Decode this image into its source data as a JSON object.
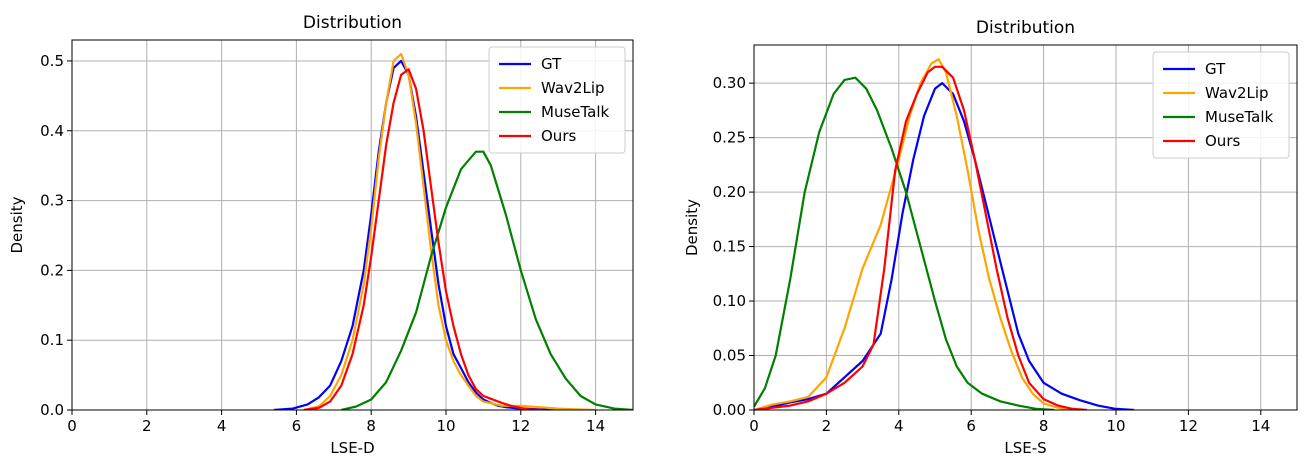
{
  "chart_data": [
    {
      "type": "line",
      "title": "Distribution",
      "xlabel": "LSE-D",
      "ylabel": "Density",
      "xlim": [
        0,
        15
      ],
      "ylim": [
        0,
        0.53
      ],
      "xticks": [
        0,
        2,
        4,
        6,
        8,
        10,
        12,
        14
      ],
      "xtick_labels": [
        "0",
        "2",
        "4",
        "6",
        "8",
        "10",
        "12",
        "14"
      ],
      "yticks": [
        0,
        0.1,
        0.2,
        0.3,
        0.4,
        0.5
      ],
      "ytick_labels": [
        "0.0",
        "0.1",
        "0.2",
        "0.3",
        "0.4",
        "0.5"
      ],
      "grid": true,
      "legend_position": "top-right",
      "series": [
        {
          "name": "GT",
          "color": "#0000ff",
          "x": [
            5.4,
            5.9,
            6.3,
            6.6,
            6.9,
            7.2,
            7.5,
            7.8,
            8.0,
            8.2,
            8.4,
            8.6,
            8.8,
            9.0,
            9.2,
            9.4,
            9.6,
            9.8,
            10.0,
            10.2,
            10.4,
            10.6,
            10.8,
            11.0,
            11.2,
            11.4,
            11.6,
            12.0,
            12.5,
            13.0
          ],
          "y": [
            0.0,
            0.002,
            0.008,
            0.018,
            0.035,
            0.07,
            0.12,
            0.2,
            0.28,
            0.37,
            0.44,
            0.49,
            0.5,
            0.48,
            0.42,
            0.34,
            0.26,
            0.18,
            0.12,
            0.08,
            0.06,
            0.04,
            0.025,
            0.015,
            0.01,
            0.006,
            0.004,
            0.002,
            0.001,
            0.0
          ]
        },
        {
          "name": "Wav2Lip",
          "color": "#ffa500",
          "x": [
            6.2,
            6.6,
            6.9,
            7.2,
            7.5,
            7.8,
            8.0,
            8.2,
            8.4,
            8.6,
            8.8,
            9.0,
            9.2,
            9.4,
            9.6,
            9.8,
            10.0,
            10.2,
            10.4,
            10.6,
            10.8,
            11.0,
            11.5,
            12.0,
            12.5,
            13.0,
            13.5,
            14.0
          ],
          "y": [
            0.0,
            0.005,
            0.02,
            0.05,
            0.1,
            0.18,
            0.26,
            0.36,
            0.44,
            0.5,
            0.51,
            0.48,
            0.41,
            0.32,
            0.23,
            0.15,
            0.1,
            0.07,
            0.05,
            0.035,
            0.02,
            0.012,
            0.006,
            0.006,
            0.004,
            0.002,
            0.001,
            0.0
          ]
        },
        {
          "name": "MuseTalk",
          "color": "#008000",
          "x": [
            7.2,
            7.6,
            8.0,
            8.4,
            8.8,
            9.2,
            9.6,
            10.0,
            10.4,
            10.8,
            11.0,
            11.2,
            11.6,
            12.0,
            12.4,
            12.8,
            13.2,
            13.6,
            14.0,
            14.5,
            15.0
          ],
          "y": [
            0.0,
            0.005,
            0.015,
            0.04,
            0.085,
            0.14,
            0.22,
            0.29,
            0.345,
            0.37,
            0.37,
            0.35,
            0.28,
            0.2,
            0.13,
            0.08,
            0.045,
            0.02,
            0.008,
            0.002,
            0.0
          ]
        },
        {
          "name": "Ours",
          "color": "#ff0000",
          "x": [
            6.2,
            6.6,
            6.9,
            7.2,
            7.5,
            7.8,
            8.0,
            8.2,
            8.4,
            8.6,
            8.8,
            9.0,
            9.2,
            9.4,
            9.6,
            9.8,
            10.0,
            10.2,
            10.4,
            10.6,
            10.8,
            11.0,
            11.2,
            11.5,
            11.8,
            12.2,
            12.6
          ],
          "y": [
            0.0,
            0.003,
            0.012,
            0.035,
            0.08,
            0.15,
            0.22,
            0.3,
            0.38,
            0.44,
            0.48,
            0.488,
            0.46,
            0.4,
            0.32,
            0.24,
            0.17,
            0.12,
            0.08,
            0.05,
            0.03,
            0.02,
            0.016,
            0.01,
            0.005,
            0.001,
            0.0
          ]
        }
      ]
    },
    {
      "type": "line",
      "title": "Distribution",
      "xlabel": "LSE-S",
      "ylabel": "Density",
      "xlim": [
        0,
        15
      ],
      "ylim": [
        0,
        0.335
      ],
      "xticks": [
        0,
        2,
        4,
        6,
        8,
        10,
        12,
        14
      ],
      "xtick_labels": [
        "0",
        "2",
        "4",
        "6",
        "8",
        "10",
        "12",
        "14"
      ],
      "yticks": [
        0,
        0.05,
        0.1,
        0.15,
        0.2,
        0.25,
        0.3
      ],
      "ytick_labels": [
        "0.00",
        "0.05",
        "0.10",
        "0.15",
        "0.20",
        "0.25",
        "0.30"
      ],
      "grid": true,
      "legend_position": "top-right",
      "series": [
        {
          "name": "GT",
          "color": "#0000ff",
          "x": [
            0.0,
            0.5,
            1.0,
            1.5,
            2.0,
            2.5,
            3.0,
            3.5,
            3.8,
            4.1,
            4.4,
            4.7,
            5.0,
            5.2,
            5.5,
            5.8,
            6.1,
            6.4,
            6.7,
            7.0,
            7.3,
            7.6,
            8.0,
            8.5,
            9.0,
            9.5,
            10.0,
            10.5
          ],
          "y": [
            0.0,
            0.003,
            0.007,
            0.01,
            0.015,
            0.03,
            0.045,
            0.07,
            0.12,
            0.18,
            0.23,
            0.27,
            0.295,
            0.3,
            0.29,
            0.265,
            0.23,
            0.19,
            0.15,
            0.11,
            0.07,
            0.045,
            0.025,
            0.015,
            0.009,
            0.004,
            0.001,
            0.0
          ]
        },
        {
          "name": "Wav2Lip",
          "color": "#ffa500",
          "x": [
            0.0,
            0.5,
            1.0,
            1.5,
            2.0,
            2.5,
            3.0,
            3.5,
            4.0,
            4.3,
            4.6,
            4.9,
            5.1,
            5.3,
            5.6,
            5.9,
            6.2,
            6.5,
            6.8,
            7.1,
            7.4,
            7.7,
            8.0,
            8.4,
            8.8
          ],
          "y": [
            0.0,
            0.005,
            0.008,
            0.012,
            0.03,
            0.075,
            0.13,
            0.17,
            0.23,
            0.27,
            0.3,
            0.318,
            0.322,
            0.31,
            0.27,
            0.22,
            0.165,
            0.12,
            0.085,
            0.055,
            0.03,
            0.015,
            0.006,
            0.002,
            0.0
          ]
        },
        {
          "name": "MuseTalk",
          "color": "#008000",
          "x": [
            0.0,
            0.3,
            0.6,
            1.0,
            1.4,
            1.8,
            2.2,
            2.5,
            2.8,
            3.1,
            3.4,
            3.8,
            4.2,
            4.6,
            5.0,
            5.3,
            5.6,
            5.9,
            6.3,
            6.8,
            7.3,
            7.8,
            8.3
          ],
          "y": [
            0.003,
            0.02,
            0.05,
            0.12,
            0.2,
            0.255,
            0.29,
            0.303,
            0.305,
            0.295,
            0.275,
            0.24,
            0.2,
            0.15,
            0.1,
            0.065,
            0.04,
            0.025,
            0.015,
            0.008,
            0.004,
            0.001,
            0.0
          ]
        },
        {
          "name": "Ours",
          "color": "#ff0000",
          "x": [
            0.0,
            0.5,
            1.0,
            1.5,
            2.0,
            2.5,
            3.0,
            3.3,
            3.6,
            3.9,
            4.2,
            4.5,
            4.8,
            5.0,
            5.2,
            5.5,
            5.8,
            6.1,
            6.4,
            6.7,
            7.0,
            7.3,
            7.6,
            8.0,
            8.4,
            8.8,
            9.2
          ],
          "y": [
            0.0,
            0.002,
            0.004,
            0.008,
            0.015,
            0.025,
            0.04,
            0.06,
            0.13,
            0.22,
            0.265,
            0.29,
            0.31,
            0.315,
            0.315,
            0.305,
            0.275,
            0.23,
            0.18,
            0.13,
            0.085,
            0.05,
            0.025,
            0.01,
            0.004,
            0.001,
            0.0
          ]
        }
      ]
    }
  ]
}
